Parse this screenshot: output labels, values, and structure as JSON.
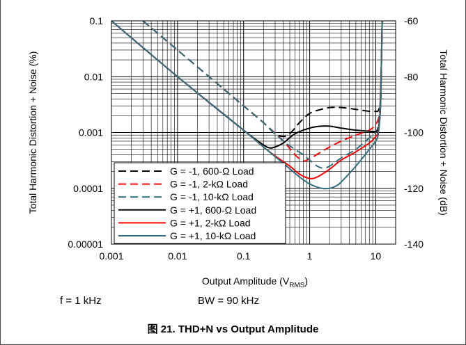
{
  "chart_data": {
    "type": "line",
    "xscale": "log",
    "yscale": "log",
    "xlim": [
      0.001,
      20
    ],
    "ylim": [
      1e-05,
      0.1
    ],
    "y2lim": [
      -140,
      -60
    ],
    "xlabel": "Output Amplitude (V",
    "xlabel_sub": "RMS",
    "xlabel_end": ")",
    "ylabel": "Total Harmonic Distortion + Noise (%)",
    "y2label": "Total Harmonic Distortion + Noise (dB)",
    "xticks": [
      "0.001",
      "0.01",
      "0.1",
      "1",
      "10"
    ],
    "xtick_values": [
      0.001,
      0.01,
      0.1,
      1,
      10
    ],
    "yticks": [
      "0.1",
      "0.01",
      "0.001",
      "0.0001",
      "0.00001"
    ],
    "ytick_values": [
      0.1,
      0.01,
      0.001,
      0.0001,
      1e-05
    ],
    "y2ticks": [
      "-60",
      "-80",
      "-100",
      "-120",
      "-140"
    ],
    "legend_position": "bottom-left",
    "grid": true,
    "series": [
      {
        "name": "G = -1, 600-Ω Load",
        "color": "#000000",
        "dash": true,
        "x": [
          0.003,
          0.01,
          0.05,
          0.1,
          0.2,
          0.3,
          0.4,
          0.5,
          0.7,
          1,
          1.5,
          2,
          3,
          5,
          8,
          10,
          11,
          11.8,
          12.2,
          12.5
        ],
        "y": [
          0.1,
          0.03,
          0.006,
          0.003,
          0.0015,
          0.00095,
          0.00085,
          0.00095,
          0.0015,
          0.0022,
          0.0026,
          0.0028,
          0.0028,
          0.0026,
          0.0024,
          0.0024,
          0.0025,
          0.004,
          0.02,
          0.1
        ]
      },
      {
        "name": "G = -1, 2-kΩ Load",
        "color": "#ff0000",
        "dash": true,
        "x": [
          0.003,
          0.01,
          0.05,
          0.1,
          0.2,
          0.4,
          0.6,
          0.8,
          1,
          1.5,
          2,
          3,
          5,
          8,
          10,
          11,
          11.6,
          12.2,
          12.5
        ],
        "y": [
          0.1,
          0.03,
          0.006,
          0.003,
          0.0015,
          0.0007,
          0.0004,
          0.00031,
          0.00034,
          0.00045,
          0.00055,
          0.0007,
          0.0009,
          0.0011,
          0.0014,
          0.0018,
          0.003,
          0.02,
          0.1
        ]
      },
      {
        "name": "G = -1, 10-kΩ Load",
        "color": "#2e6e7e",
        "dash": true,
        "x": [
          0.003,
          0.01,
          0.05,
          0.1,
          0.2,
          0.4,
          0.6,
          0.8,
          1,
          1.3,
          1.6,
          2,
          3,
          5,
          8,
          10,
          11,
          11.6,
          12.2,
          12.5
        ],
        "y": [
          0.1,
          0.03,
          0.006,
          0.003,
          0.0015,
          0.0007,
          0.0005,
          0.0004,
          0.00032,
          0.00025,
          0.00023,
          0.00025,
          0.00035,
          0.0005,
          0.0008,
          0.001,
          0.0014,
          0.003,
          0.02,
          0.1
        ]
      },
      {
        "name": "G = +1, 600-Ω Load",
        "color": "#000000",
        "dash": false,
        "x": [
          0.001,
          0.01,
          0.1,
          0.2,
          0.25,
          0.3,
          0.4,
          0.6,
          1,
          1.5,
          2,
          3,
          5,
          8,
          10,
          11,
          11.8,
          12.2,
          12.5
        ],
        "y": [
          0.1,
          0.01,
          0.0011,
          0.0006,
          0.00053,
          0.00055,
          0.00065,
          0.00095,
          0.0012,
          0.0013,
          0.0013,
          0.0012,
          0.0011,
          0.00105,
          0.00105,
          0.0012,
          0.003,
          0.02,
          0.1
        ]
      },
      {
        "name": "G = +1, 2-kΩ Load",
        "color": "#ff0000",
        "dash": false,
        "x": [
          0.001,
          0.01,
          0.1,
          0.2,
          0.3,
          0.5,
          0.7,
          1,
          1.3,
          2,
          3,
          5,
          8,
          10,
          11,
          11.8,
          12.2,
          12.5
        ],
        "y": [
          0.1,
          0.01,
          0.0011,
          0.00055,
          0.00038,
          0.00025,
          0.00018,
          0.00015,
          0.00016,
          0.00022,
          0.00032,
          0.00045,
          0.00065,
          0.00085,
          0.0011,
          0.003,
          0.02,
          0.1
        ]
      },
      {
        "name": "G = +1, 10-kΩ Load",
        "color": "#2e6e7e",
        "dash": false,
        "x": [
          0.001,
          0.01,
          0.1,
          0.2,
          0.4,
          0.7,
          1,
          1.5,
          2,
          2.5,
          3,
          5,
          8,
          10,
          11,
          11.8,
          12.2,
          12.5
        ],
        "y": [
          0.1,
          0.01,
          0.0011,
          0.00055,
          0.00028,
          0.00016,
          0.00012,
          0.0001,
          0.0001,
          0.00011,
          0.00013,
          0.00025,
          0.0005,
          0.0007,
          0.001,
          0.003,
          0.02,
          0.1
        ]
      }
    ]
  },
  "notes": {
    "frequency": "f = 1 kHz",
    "bandwidth": "BW = 90 kHz"
  },
  "caption": "图 21. THD+N vs Output Amplitude"
}
